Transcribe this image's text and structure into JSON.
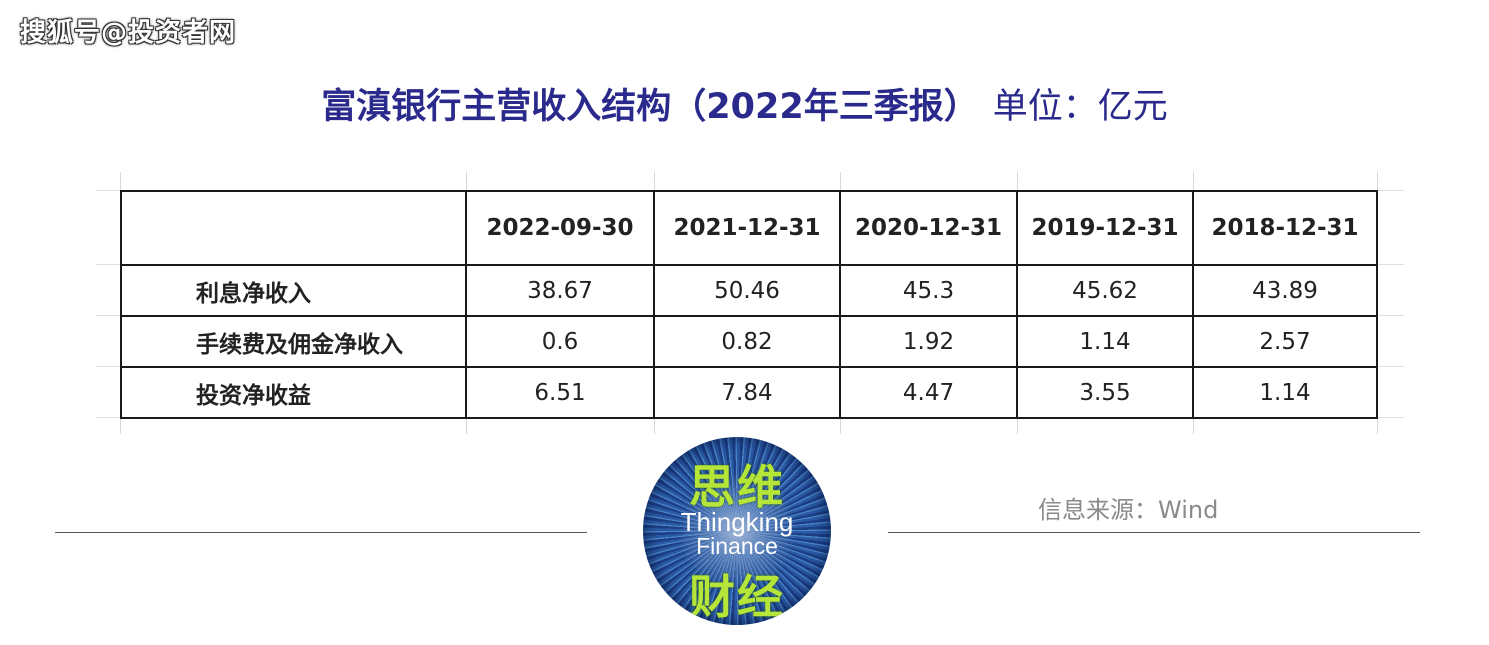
{
  "watermark": "搜狐号@投资者网",
  "title": {
    "main": "富滇银行主营收入结构（2022年三季报）",
    "unit": "单位：亿元"
  },
  "table": {
    "headers": [
      "",
      "2022-09-30",
      "2021-12-31",
      "2020-12-31",
      "2019-12-31",
      "2018-12-31"
    ],
    "rows": [
      {
        "label": "利息净收入",
        "values": [
          "38.67",
          "50.46",
          "45.3",
          "45.62",
          "43.89"
        ]
      },
      {
        "label": "手续费及佣金净收入",
        "values": [
          "0.6",
          "0.82",
          "1.92",
          "1.14",
          "2.57"
        ]
      },
      {
        "label": "投资净收益",
        "values": [
          "6.51",
          "7.84",
          "4.47",
          "3.55",
          "1.14"
        ]
      }
    ]
  },
  "logo": {
    "cn_top": "思维",
    "en_line1": "Thingking",
    "en_line2": "Finance",
    "cn_bottom": "财经"
  },
  "source": "信息来源：Wind",
  "colors": {
    "title": "#2a2a8c",
    "logo_text": "#b6e53a",
    "logo_bg": "#1d3f86",
    "source": "#8a8a8a"
  }
}
